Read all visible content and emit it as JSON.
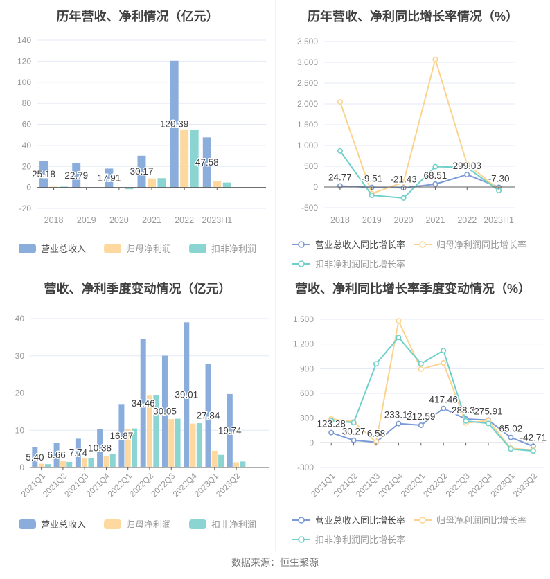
{
  "page": {
    "footer": "数据来源：恒生聚源"
  },
  "chart_data": [
    {
      "type": "bar",
      "title": "历年营收、净利情况（亿元）",
      "categories": [
        "2018",
        "2019",
        "2020",
        "2021",
        "2022",
        "2023H1"
      ],
      "ylim": [
        -20,
        140
      ],
      "ystep": 20,
      "grid": true,
      "legend_position": "bottom",
      "series": [
        {
          "name": "营业总收入",
          "color": "#8BADDC",
          "labeled": true,
          "values": [
            25.18,
            22.79,
            17.91,
            30.17,
            120.39,
            47.58
          ]
        },
        {
          "name": "归母净利润",
          "color": "#FDD9A0",
          "values": [
            0.55,
            -0.35,
            -0.3,
            8.5,
            55.2,
            6.1
          ]
        },
        {
          "name": "扣非净利润",
          "color": "#8AD5D2",
          "values": [
            0.8,
            -0.6,
            -1.7,
            8.8,
            55.0,
            4.6
          ]
        }
      ]
    },
    {
      "type": "line",
      "title": "历年营收、净利同比增长率情况（%）",
      "categories": [
        "2018",
        "2019",
        "2020",
        "2021",
        "2022",
        "2023H1"
      ],
      "ylim": [
        -500,
        3500
      ],
      "ystep": 500,
      "grid": true,
      "legend_position": "bottom",
      "series": [
        {
          "name": "营业总收入同比增长率",
          "color": "#7B9AD6",
          "labeled": true,
          "values": [
            24.77,
            -9.51,
            -21.43,
            68.51,
            299.03,
            -7.3
          ]
        },
        {
          "name": "归母净利润同比增长率",
          "color": "#FBD38D",
          "values": [
            2050,
            -160,
            115,
            3070,
            550,
            -60
          ]
        },
        {
          "name": "扣非净利润同比增长率",
          "color": "#6FD0CB",
          "values": [
            870,
            -200,
            -265,
            490,
            470,
            -85
          ]
        }
      ]
    },
    {
      "type": "bar",
      "title": "营收、净利季度变动情况（亿元）",
      "categories": [
        "2021Q1",
        "2021Q2",
        "2021Q3",
        "2021Q4",
        "2022Q1",
        "2022Q2",
        "2022Q3",
        "2022Q4",
        "2023Q1",
        "2023Q2"
      ],
      "ylim": [
        0,
        40
      ],
      "ystep": 10,
      "grid": true,
      "legend_position": "bottom",
      "series": [
        {
          "name": "营业总收入",
          "color": "#8BADDC",
          "labeled": true,
          "values": [
            5.4,
            6.66,
            7.74,
            10.38,
            16.87,
            34.46,
            30.05,
            39.01,
            27.84,
            19.74
          ]
        },
        {
          "name": "归母净利润",
          "color": "#FDD9A0",
          "values": [
            1.0,
            1.7,
            2.5,
            3.1,
            10.4,
            19.3,
            13.0,
            11.8,
            4.5,
            1.4
          ]
        },
        {
          "name": "扣非净利润",
          "color": "#8AD5D2",
          "values": [
            0.9,
            1.5,
            2.5,
            3.7,
            10.5,
            19.4,
            13.1,
            11.9,
            3.4,
            1.6
          ]
        }
      ]
    },
    {
      "type": "line",
      "title": "营收、净利同比增长率季度变动情况（%）",
      "categories": [
        "2021Q1",
        "2021Q2",
        "2021Q3",
        "2021Q4",
        "2022Q1",
        "2022Q2",
        "2022Q3",
        "2022Q4",
        "2023Q1",
        "2023Q2"
      ],
      "ylim": [
        -300,
        1500
      ],
      "ystep": 300,
      "grid": true,
      "legend_position": "bottom",
      "series": [
        {
          "name": "营业总收入同比增长率",
          "color": "#7B9AD6",
          "labeled": true,
          "values": [
            123.28,
            30.27,
            6.58,
            233.1,
            212.59,
            417.46,
            288.37,
            275.91,
            65.02,
            -42.71
          ]
        },
        {
          "name": "归母净利润同比增长率",
          "color": "#FBD38D",
          "values": [
            290,
            255,
            8,
            1480,
            895,
            970,
            240,
            270,
            -65,
            -90
          ]
        },
        {
          "name": "扣非净利润同比增长率",
          "color": "#6FD0CB",
          "values": [
            270,
            245,
            960,
            1280,
            960,
            1120,
            265,
            235,
            -75,
            -100
          ]
        }
      ]
    }
  ]
}
